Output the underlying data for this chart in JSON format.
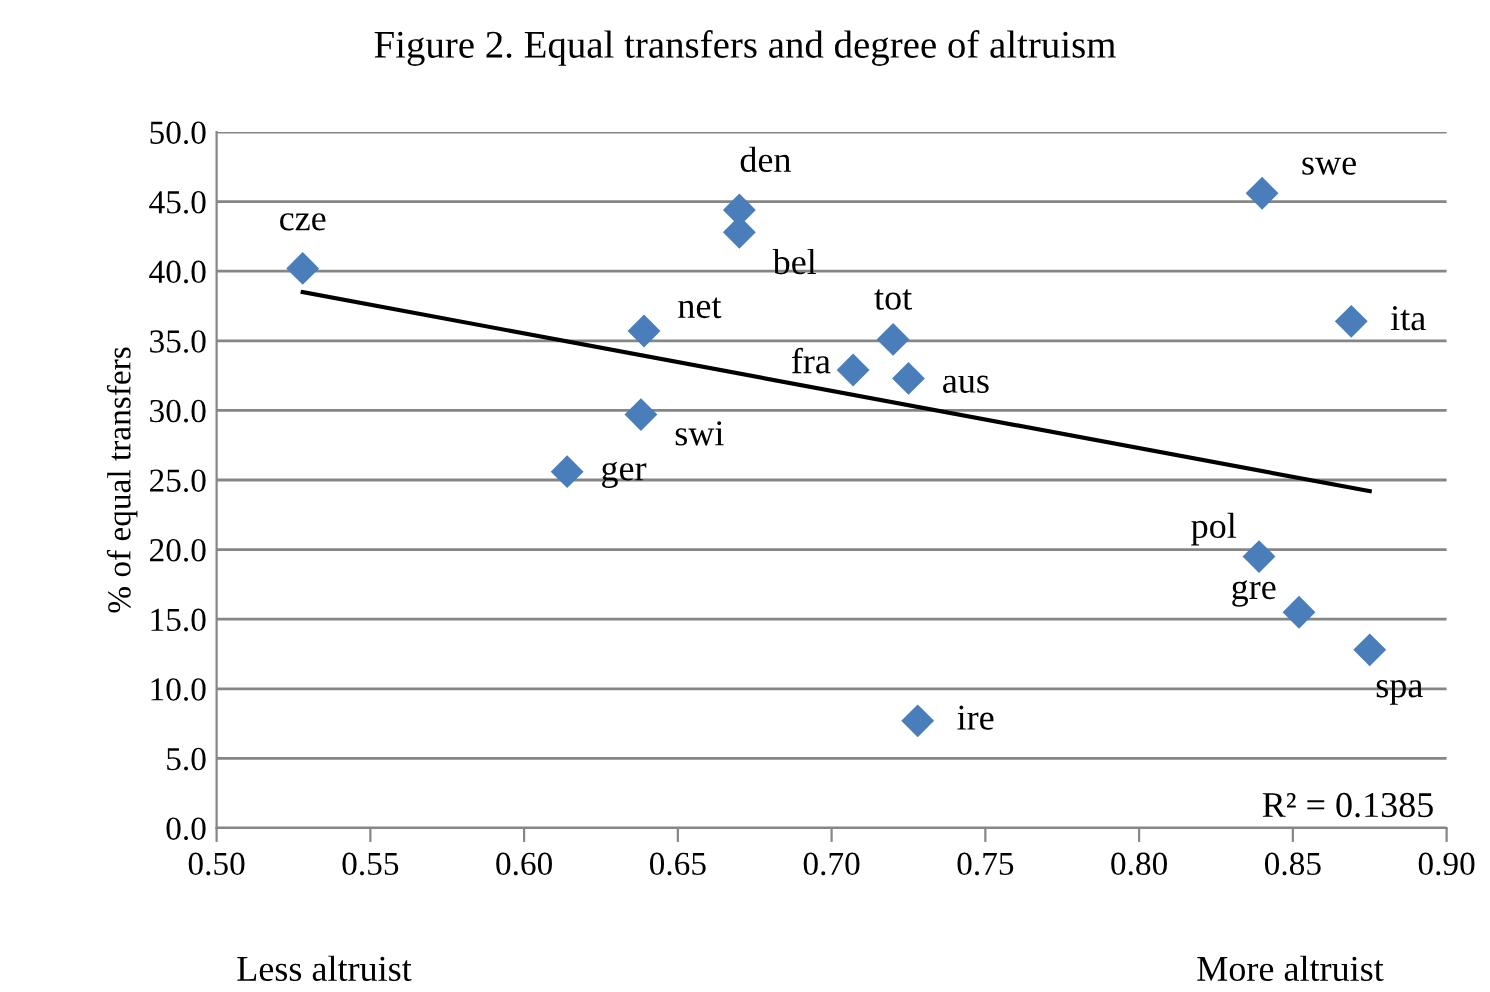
{
  "chart_data": {
    "type": "scatter",
    "title": "Figure 2. Equal transfers and degree of altruism",
    "ylabel": "% of equal transfers",
    "xlim": [
      0.5,
      0.9
    ],
    "xticks": [
      {
        "value": 0.5,
        "label": "0.50"
      },
      {
        "value": 0.55,
        "label": "0.55"
      },
      {
        "value": 0.6,
        "label": "0.60"
      },
      {
        "value": 0.65,
        "label": "0.65"
      },
      {
        "value": 0.7,
        "label": "0.70"
      },
      {
        "value": 0.75,
        "label": "0.75"
      },
      {
        "value": 0.8,
        "label": "0.80"
      },
      {
        "value": 0.85,
        "label": "0.85"
      },
      {
        "value": 0.9,
        "label": "0.90"
      }
    ],
    "ylim": [
      0,
      50
    ],
    "yticks": [
      {
        "value": 0,
        "label": "0.0"
      },
      {
        "value": 5,
        "label": "5.0"
      },
      {
        "value": 10,
        "label": "10.0"
      },
      {
        "value": 15,
        "label": "15.0"
      },
      {
        "value": 20,
        "label": "20.0"
      },
      {
        "value": 25,
        "label": "25.0"
      },
      {
        "value": 30,
        "label": "30.0"
      },
      {
        "value": 35,
        "label": "35.0"
      },
      {
        "value": 40,
        "label": "40.0"
      },
      {
        "value": 45,
        "label": "45.0"
      },
      {
        "value": 50,
        "label": "50.0"
      }
    ],
    "grid": "y",
    "legend": false,
    "series": [
      {
        "marker": "diamond",
        "color": "#4a7ebb",
        "x": [
          0.528,
          0.67,
          0.67,
          0.639,
          0.638,
          0.614,
          0.707,
          0.72,
          0.725,
          0.728,
          0.84,
          0.869,
          0.839,
          0.852,
          0.875
        ],
        "values": [
          40.2,
          44.4,
          42.8,
          35.7,
          29.7,
          25.6,
          32.9,
          35.1,
          32.3,
          7.7,
          45.6,
          36.4,
          19.5,
          15.5,
          12.8
        ],
        "value_labels": [
          "cze",
          "den",
          "bel",
          "net",
          "swi",
          "ger",
          "fra",
          "tot",
          "aus",
          "ire",
          "swe",
          "ita",
          "pol",
          "gre",
          "spa"
        ]
      },
      {
        "type": "line",
        "marker": "none",
        "color": "#000000",
        "x": [
          0.528,
          0.875
        ],
        "values": [
          38.5,
          24.2
        ]
      }
    ],
    "annotations": [
      "R² = 0.1385",
      "Less altruist",
      "More altruist"
    ]
  }
}
